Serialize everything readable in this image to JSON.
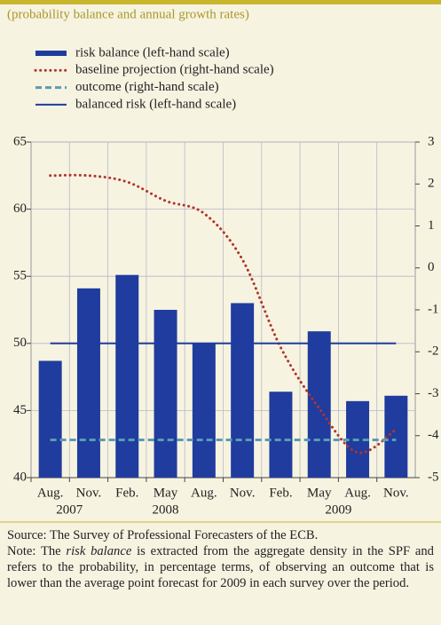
{
  "chart_data": {
    "type": "bar",
    "subtitle": "(probability balance and annual growth rates)",
    "categories": [
      "Aug.",
      "Nov.",
      "Feb.",
      "May",
      "Aug.",
      "Nov.",
      "Feb.",
      "May",
      "Aug.",
      "Nov."
    ],
    "x_groups": [
      "2007",
      "2008",
      "2009"
    ],
    "series": [
      {
        "name": "risk balance (left-hand scale)",
        "type": "bar",
        "axis": "y",
        "color": "#1f3c9e",
        "values": [
          48.7,
          54.1,
          55.1,
          52.5,
          50.0,
          53.0,
          46.4,
          50.9,
          45.7,
          46.1
        ]
      },
      {
        "name": "baseline projection (right-hand scale)",
        "type": "line",
        "style": "dotted",
        "axis": "y2",
        "color": "#b0352b",
        "values": [
          2.2,
          2.2,
          2.05,
          1.6,
          1.3,
          0.2,
          -1.9,
          -3.35,
          -4.4,
          -3.85
        ]
      },
      {
        "name": "outcome (right-hand scale)",
        "type": "line",
        "style": "dashed",
        "axis": "y2",
        "color": "#5b9bb5",
        "values": [
          -4.1,
          -4.1,
          -4.1,
          -4.1,
          -4.1,
          -4.1,
          -4.1,
          -4.1,
          -4.1,
          -4.1
        ]
      },
      {
        "name": "balanced risk (left-hand scale)",
        "type": "line",
        "style": "solid",
        "axis": "y",
        "color": "#1f3c9e",
        "values": [
          50,
          50,
          50,
          50,
          50,
          50,
          50,
          50,
          50,
          50
        ]
      }
    ],
    "ylim": [
      40,
      65
    ],
    "yticks": [
      40,
      45,
      50,
      55,
      60,
      65
    ],
    "y2lim": [
      -5,
      3
    ],
    "y2ticks": [
      -5,
      -4,
      -3,
      -2,
      -1,
      0,
      1,
      2,
      3
    ],
    "grid": true
  },
  "source": "Source: The Survey of Professional Forecasters of the ECB.",
  "note": [
    "Note: The ",
    "risk balance",
    " is extracted from the aggregate density in the SPF and refers to the probability, in percentage terms, of observing an outcome that is lower than the average point forecast for 2009 in each survey over the period."
  ]
}
